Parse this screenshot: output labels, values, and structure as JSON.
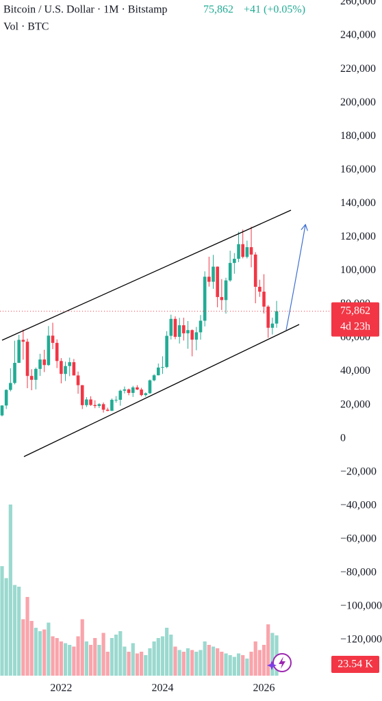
{
  "chart_data": {
    "type": "candlestick",
    "title": "Bitcoin / U.S. Dollar · 1M · Bitstamp",
    "price_label": "75,862",
    "change_label": "+41 (+0.05%)",
    "volume_title": "Vol · BTC",
    "last_price_label": "75,862",
    "countdown": "4d 23h",
    "last_volume_label": "23.54 K",
    "up_color": "#22ab94",
    "down_color": "#f23645",
    "categories": [
      null,
      null,
      null,
      null,
      null,
      null,
      null,
      null,
      null,
      null,
      null,
      null,
      null,
      null,
      "2022",
      null,
      null,
      null,
      null,
      null,
      null,
      null,
      null,
      null,
      null,
      null,
      null,
      null,
      null,
      null,
      null,
      null,
      null,
      null,
      null,
      null,
      null,
      null,
      "2024",
      null,
      null,
      null,
      null,
      null,
      null,
      null,
      null,
      null,
      null,
      null,
      null,
      null,
      null,
      null,
      null,
      null,
      null,
      null,
      null,
      null,
      null,
      null,
      "2026",
      null,
      null,
      null
    ],
    "open": [
      13800,
      19700,
      29000,
      33100,
      45100,
      58800,
      57700,
      37300,
      35000,
      41500,
      47100,
      43800,
      61300,
      57000,
      46200,
      38500,
      43200,
      45500,
      37600,
      31800,
      19900,
      23300,
      20000,
      19400,
      20500,
      17200,
      16500,
      23100,
      23100,
      28500,
      29300,
      27200,
      30500,
      29200,
      25900,
      27000,
      34700,
      37700,
      42300,
      42600,
      61200,
      71300,
      60600,
      67500,
      62700,
      64600,
      58900,
      63300,
      70200,
      96400,
      93400,
      102400,
      84300,
      82500,
      94200,
      104600,
      107100,
      115800,
      108200,
      114000,
      109600,
      90400,
      87500,
      78600,
      66000,
      68500
    ],
    "high": [
      19900,
      29300,
      41900,
      58300,
      61800,
      64900,
      59500,
      41300,
      42300,
      50500,
      52900,
      67000,
      69000,
      59100,
      47900,
      45800,
      48200,
      47400,
      39900,
      31900,
      24700,
      25200,
      22800,
      21100,
      21500,
      18400,
      23900,
      25300,
      29200,
      31000,
      29800,
      31400,
      31800,
      30200,
      27500,
      35200,
      38400,
      44700,
      49000,
      64000,
      73800,
      72800,
      71900,
      72000,
      70000,
      65000,
      66500,
      73600,
      99600,
      108300,
      109400,
      102500,
      95000,
      95800,
      111900,
      110500,
      123200,
      124500,
      117900,
      126200,
      111000,
      94600,
      97900,
      79500,
      72000,
      82000
    ],
    "low": [
      13200,
      17600,
      28100,
      32300,
      45000,
      47000,
      30000,
      28800,
      29300,
      37300,
      39600,
      43300,
      53300,
      42000,
      32900,
      34300,
      37200,
      37600,
      26700,
      17600,
      18800,
      19500,
      18100,
      18200,
      15500,
      16300,
      16500,
      21400,
      19600,
      26900,
      25800,
      24800,
      28900,
      25200,
      24900,
      26600,
      34100,
      37600,
      38500,
      41900,
      59000,
      59200,
      56600,
      58400,
      53500,
      49000,
      52600,
      58900,
      66800,
      90500,
      89200,
      78200,
      76600,
      74400,
      93400,
      98200,
      105100,
      107300,
      107300,
      102000,
      80600,
      84400,
      74500,
      60000,
      62000,
      66000
    ],
    "close": [
      19700,
      29000,
      33100,
      45100,
      58800,
      57700,
      37300,
      35000,
      41500,
      47100,
      43800,
      61300,
      57000,
      46200,
      38500,
      43200,
      45500,
      37600,
      31800,
      19900,
      23300,
      20000,
      19400,
      20500,
      17200,
      16500,
      23100,
      23100,
      28500,
      29300,
      27200,
      30500,
      29200,
      25900,
      27000,
      34700,
      37700,
      42300,
      42600,
      61200,
      71300,
      60600,
      67500,
      62700,
      64600,
      58900,
      63300,
      70200,
      96400,
      93400,
      102400,
      84300,
      82500,
      94200,
      104600,
      107100,
      115800,
      108200,
      114000,
      109600,
      90400,
      87500,
      78600,
      66000,
      68500,
      75862
    ],
    "volume": [
      64000,
      57000,
      100000,
      53000,
      52000,
      33000,
      46000,
      32000,
      28000,
      26000,
      27000,
      31000,
      23000,
      22000,
      20000,
      19000,
      18000,
      17000,
      23000,
      33000,
      20000,
      18000,
      22000,
      18000,
      25000,
      14000,
      22000,
      24000,
      26000,
      17000,
      14000,
      19000,
      13000,
      14000,
      12000,
      16000,
      20000,
      22000,
      23000,
      28000,
      24000,
      17000,
      15000,
      14000,
      16000,
      15000,
      14000,
      15000,
      20000,
      18000,
      17000,
      16000,
      14000,
      13000,
      12000,
      11000,
      13000,
      12000,
      10000,
      14000,
      20000,
      15000,
      18000,
      30000,
      25000,
      23540
    ],
    "ylim": [
      -140000,
      260000
    ],
    "yticks": [
      {
        "value": -120000,
        "label": "−120,000"
      },
      {
        "value": -100000,
        "label": "−100,000"
      },
      {
        "value": -80000,
        "label": "−80,000"
      },
      {
        "value": -60000,
        "label": "−60,000"
      },
      {
        "value": -40000,
        "label": "−40,000"
      },
      {
        "value": -20000,
        "label": "−20,000"
      },
      0,
      {
        "value": 20000,
        "label": "20,000"
      },
      {
        "value": 40000,
        "label": "40,000"
      },
      {
        "value": 60000,
        "label": "60,000"
      },
      {
        "value": 80000,
        "label": "80,000"
      },
      {
        "value": 100000,
        "label": "100,000"
      },
      {
        "value": 120000,
        "label": "120,000"
      },
      {
        "value": 140000,
        "label": "140,000"
      },
      {
        "value": 160000,
        "label": "160,000"
      },
      {
        "value": 180000,
        "label": "180,000"
      },
      {
        "value": 200000,
        "label": "200,000"
      },
      {
        "value": 220000,
        "label": "220,000"
      },
      {
        "value": 240000,
        "label": "240,000"
      },
      {
        "value": 260000,
        "label": "260,000"
      }
    ]
  }
}
